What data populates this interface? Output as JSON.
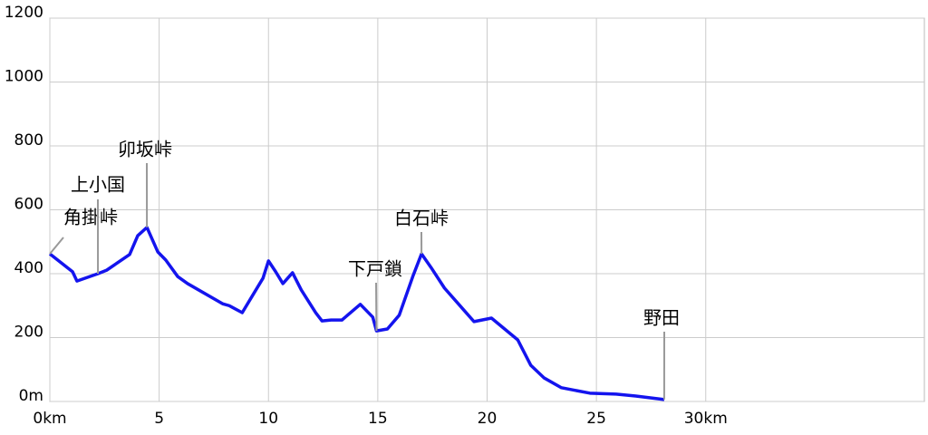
{
  "chart_data": {
    "type": "line",
    "x": [
      0,
      1.04,
      1.24,
      2.2,
      2.6,
      3.65,
      4.02,
      4.44,
      4.94,
      5.3,
      5.85,
      6.3,
      7.9,
      8.2,
      8.8,
      9.3,
      9.75,
      10,
      10.33,
      10.66,
      11.1,
      11.5,
      12.16,
      12.45,
      12.86,
      13.36,
      14.2,
      14.77,
      14.94,
      15.44,
      15.98,
      16.6,
      17.0,
      17.43,
      18.05,
      19.4,
      20.2,
      21.4,
      22.0,
      22.6,
      23.4,
      24.7,
      25.9,
      26.8,
      28.1
    ],
    "values": [
      462,
      406,
      377,
      400,
      411,
      460,
      519,
      545,
      468,
      443,
      391,
      369,
      306,
      300,
      278,
      335,
      386,
      440,
      406,
      369,
      403,
      349,
      278,
      252,
      255,
      255,
      304,
      264,
      221,
      227,
      270,
      391,
      462,
      420,
      355,
      250,
      261,
      193,
      113,
      74,
      43,
      26,
      23,
      17,
      6
    ],
    "color": "#1414ee",
    "xlim": [
      0,
      40
    ],
    "xticks": [
      {
        "value": 0,
        "label": "0km"
      },
      5,
      10,
      15,
      20,
      25,
      {
        "value": 30,
        "label": "30km"
      }
    ],
    "ylim": [
      0,
      1200
    ],
    "yticks": [
      {
        "value": 0,
        "label": "0m"
      },
      200,
      400,
      600,
      800,
      1000,
      1200
    ],
    "grid": true,
    "annotations": [
      {
        "text": "角掛峠",
        "x": 0,
        "y": 462
      },
      {
        "text": "上小国",
        "x": 2.2,
        "y": 400
      },
      {
        "text": "卯坂峠",
        "x": 4.44,
        "y": 545
      },
      {
        "text": "下戸鎖",
        "x": 14.94,
        "y": 221
      },
      {
        "text": "白石峠",
        "x": 17.0,
        "y": 462
      },
      {
        "text": "野田",
        "x": 28.1,
        "y": 6
      }
    ]
  }
}
